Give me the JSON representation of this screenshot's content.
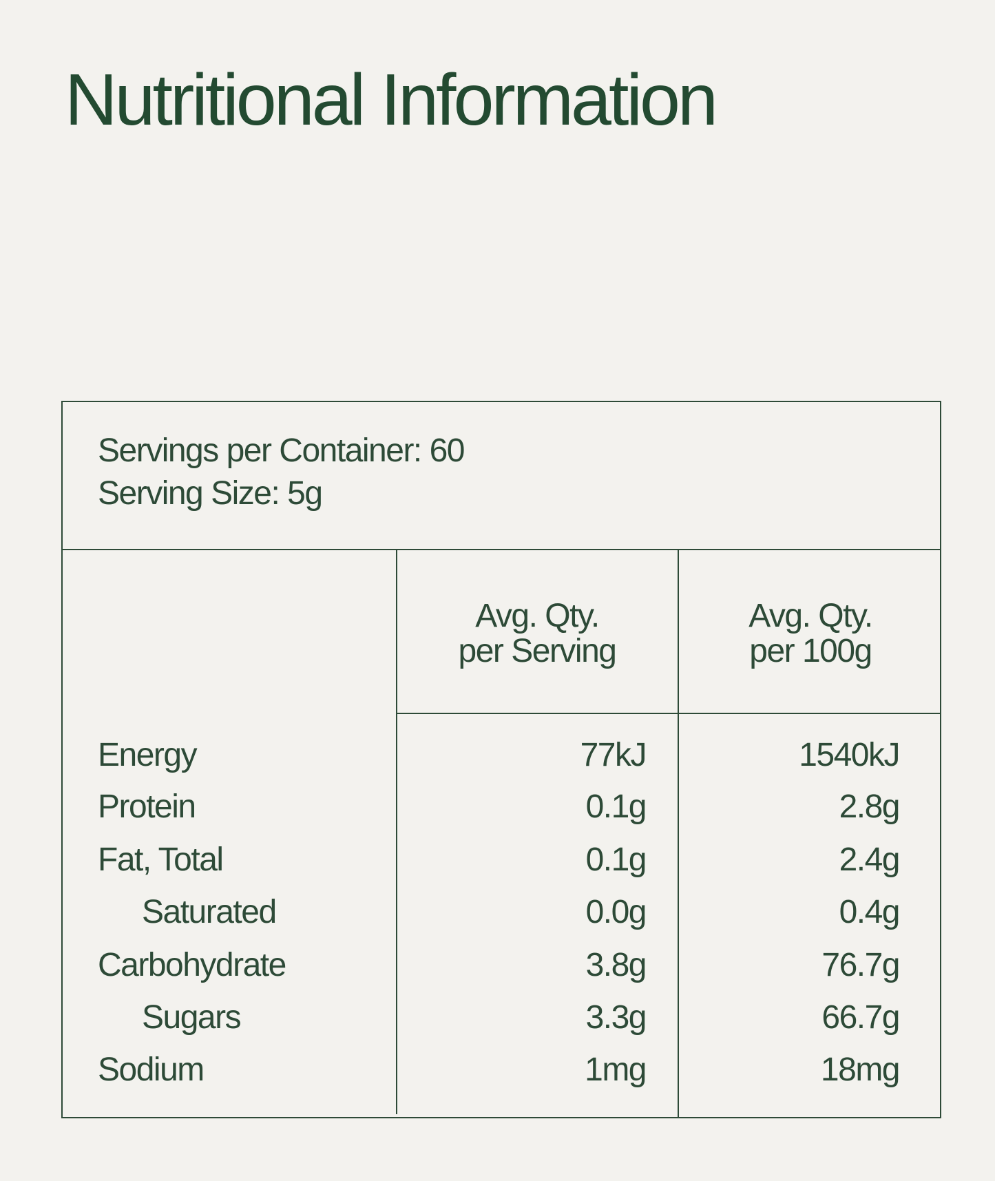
{
  "title": "Nutritional Information",
  "summary": {
    "servings": "Servings per Container: 60",
    "serving_size": "Serving Size: 5g"
  },
  "table": {
    "columns": [
      [
        "Avg. Qty.",
        "per Serving"
      ],
      [
        "Avg. Qty.",
        "per 100g"
      ]
    ],
    "rows": [
      [
        "Energy",
        "77kJ",
        "1540kJ"
      ],
      [
        "Protein",
        "0.1g",
        "2.8g"
      ],
      [
        "Fat, Total",
        "0.1g",
        "2.4g"
      ],
      [
        "Saturated",
        "0.0g",
        "0.4g"
      ],
      [
        "Carbohydrate",
        "3.8g",
        "76.7g"
      ],
      [
        "Sugars",
        "3.3g",
        "66.7g"
      ],
      [
        "Sodium",
        "1mg",
        "18mg"
      ]
    ]
  }
}
